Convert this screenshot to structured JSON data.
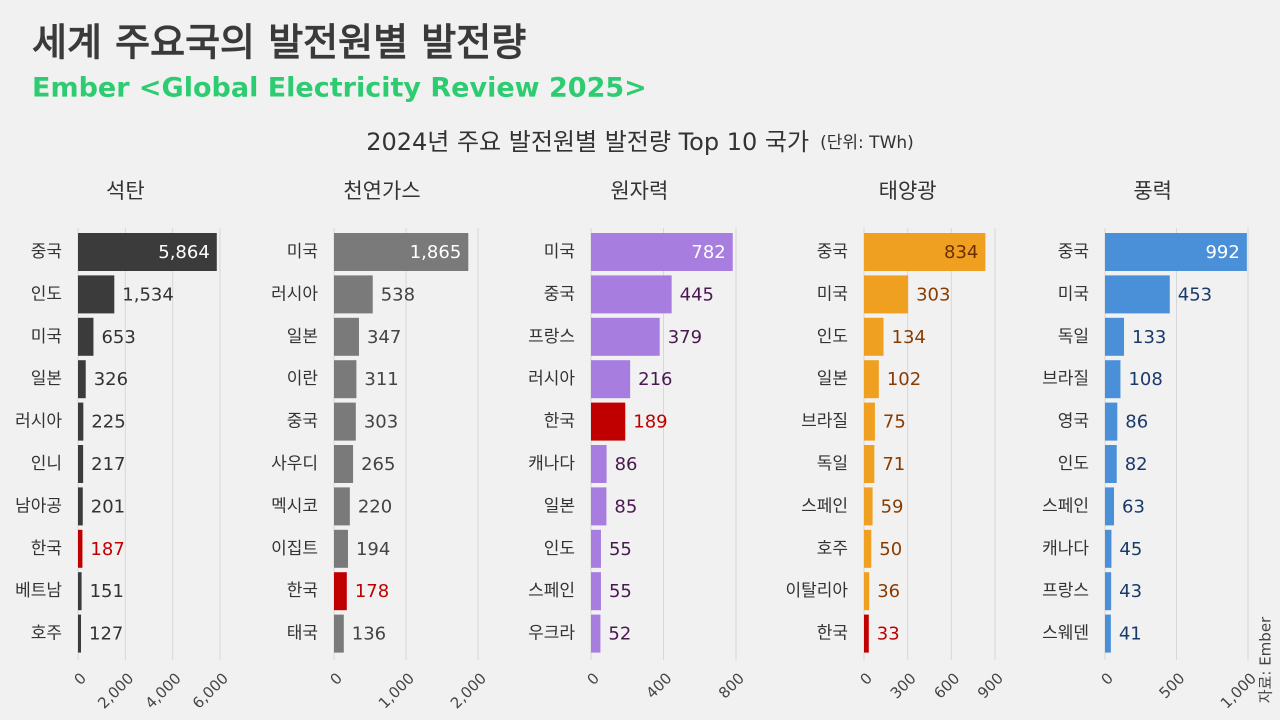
{
  "title": "세계 주요국의 발전원별 발전량",
  "subtitle": "Ember <Global Electricity Review 2025>",
  "heading": "2024년 주요 발전원별 발전량 Top 10 국가",
  "unit": "(단위: TWh)",
  "source": "자료: Ember",
  "chart_data": [
    {
      "type": "bar",
      "orientation": "horizontal",
      "title": "석탄",
      "categories": [
        "중국",
        "인도",
        "미국",
        "일본",
        "러시아",
        "인니",
        "남아공",
        "한국",
        "베트남",
        "호주"
      ],
      "values": [
        5864,
        1534,
        653,
        326,
        225,
        217,
        201,
        187,
        151,
        127
      ],
      "value_labels": [
        "5,864",
        "1,534",
        "653",
        "326",
        "225",
        "217",
        "201",
        "187",
        "151",
        "127"
      ],
      "colors": [
        "#3b3b3b",
        "#3b3b3b",
        "#3b3b3b",
        "#3b3b3b",
        "#3b3b3b",
        "#3b3b3b",
        "#3b3b3b",
        "#c00000",
        "#3b3b3b",
        "#3b3b3b"
      ],
      "label_color": "#333333",
      "inside_label_color": "#ffffff",
      "xlim": [
        0,
        6000
      ],
      "xticks": [
        0,
        {
          "value": 2000,
          "label": "2,000"
        },
        {
          "value": 4000,
          "label": "4,000"
        },
        {
          "value": 6000,
          "label": "6,000"
        }
      ],
      "grid": true
    },
    {
      "type": "bar",
      "orientation": "horizontal",
      "title": "천연가스",
      "categories": [
        "미국",
        "러시아",
        "일본",
        "이란",
        "중국",
        "사우디",
        "멕시코",
        "이집트",
        "한국",
        "태국"
      ],
      "values": [
        1865,
        538,
        347,
        311,
        303,
        265,
        220,
        194,
        178,
        136
      ],
      "value_labels": [
        "1,865",
        "538",
        "347",
        "311",
        "303",
        "265",
        "220",
        "194",
        "178",
        "136"
      ],
      "colors": [
        "#7a7a7a",
        "#7a7a7a",
        "#7a7a7a",
        "#7a7a7a",
        "#7a7a7a",
        "#7a7a7a",
        "#7a7a7a",
        "#7a7a7a",
        "#c00000",
        "#7a7a7a"
      ],
      "label_color": "#444444",
      "inside_label_color": "#ffffff",
      "xlim": [
        0,
        2000
      ],
      "xticks": [
        0,
        {
          "value": 1000,
          "label": "1,000"
        },
        {
          "value": 2000,
          "label": "2,000"
        }
      ],
      "grid": true
    },
    {
      "type": "bar",
      "orientation": "horizontal",
      "title": "원자력",
      "categories": [
        "미국",
        "중국",
        "프랑스",
        "러시아",
        "한국",
        "캐나다",
        "일본",
        "인도",
        "스페인",
        "우크라"
      ],
      "values": [
        782,
        445,
        379,
        216,
        189,
        86,
        85,
        55,
        55,
        52
      ],
      "colors": [
        "#a77de0",
        "#a77de0",
        "#a77de0",
        "#a77de0",
        "#c00000",
        "#a77de0",
        "#a77de0",
        "#a77de0",
        "#a77de0",
        "#a77de0"
      ],
      "label_color": "#4a1850",
      "inside_label_color": "#ffffff",
      "xlim": [
        0,
        800
      ],
      "xticks": [
        0,
        400,
        800
      ],
      "grid": true
    },
    {
      "type": "bar",
      "orientation": "horizontal",
      "title": "태양광",
      "categories": [
        "중국",
        "미국",
        "인도",
        "일본",
        "브라질",
        "독일",
        "스페인",
        "호주",
        "이탈리아",
        "한국"
      ],
      "values": [
        834,
        303,
        134,
        102,
        75,
        71,
        59,
        50,
        36,
        33
      ],
      "colors": [
        "#f0a020",
        "#f0a020",
        "#f0a020",
        "#f0a020",
        "#f0a020",
        "#f0a020",
        "#f0a020",
        "#f0a020",
        "#f0a020",
        "#c00000"
      ],
      "label_color": "#8a3c00",
      "inside_label_color": "#6a2e00",
      "xlim": [
        0,
        900
      ],
      "xticks": [
        0,
        300,
        600,
        900
      ],
      "grid": true
    },
    {
      "type": "bar",
      "orientation": "horizontal",
      "title": "풍력",
      "categories": [
        "중국",
        "미국",
        "독일",
        "브라질",
        "영국",
        "인도",
        "스페인",
        "캐나다",
        "프랑스",
        "스웨덴"
      ],
      "values": [
        992,
        453,
        133,
        108,
        86,
        82,
        63,
        45,
        43,
        41
      ],
      "colors": [
        "#4a90d9",
        "#4a90d9",
        "#4a90d9",
        "#4a90d9",
        "#4a90d9",
        "#4a90d9",
        "#4a90d9",
        "#4a90d9",
        "#4a90d9",
        "#4a90d9"
      ],
      "label_color": "#1a3a6a",
      "inside_label_color": "#ffffff",
      "xlim": [
        0,
        1000
      ],
      "xticks": [
        0,
        500,
        {
          "value": 1000,
          "label": "1,000"
        }
      ],
      "grid": true
    }
  ]
}
